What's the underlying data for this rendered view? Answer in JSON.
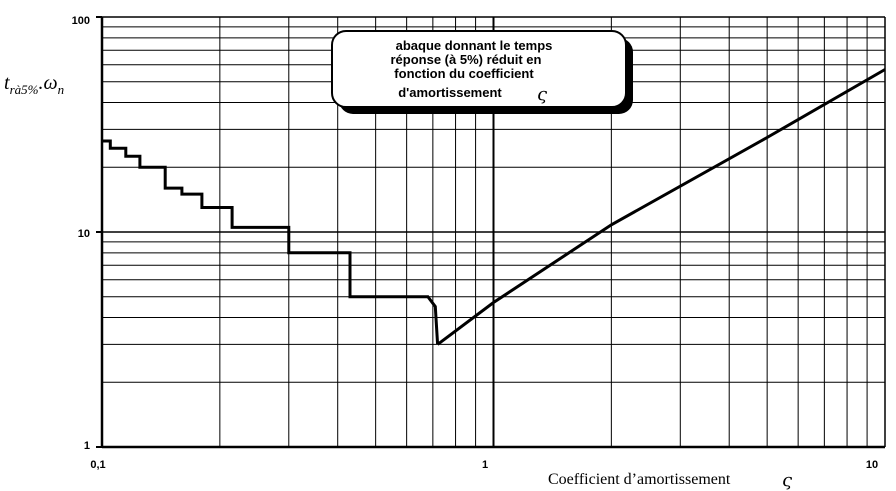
{
  "chart_data": {
    "type": "line",
    "xscale": "log",
    "yscale": "log",
    "xlim": [
      0.1,
      10
    ],
    "ylim": [
      1,
      100
    ],
    "grid": true,
    "x_ticks": [
      "0,1",
      "1",
      "10"
    ],
    "y_ticks": [
      "1",
      "10",
      "100"
    ],
    "ylabel": {
      "main": "t",
      "sub": "rà5%",
      "tail": ".ω",
      "tail_sub": "n"
    },
    "xlabel": {
      "text": "Coefficient d’amortissement",
      "symbol": "ς"
    },
    "annotation": {
      "lines": [
        "abaque donnant le temps",
        "réponse (à 5%) réduit en",
        "fonction du coefficient",
        "d'amortissement"
      ],
      "symbol": "ς"
    },
    "series": [
      {
        "values": [
          [
            0.1,
            26.5
          ],
          [
            0.105,
            26.5
          ],
          [
            0.105,
            24.5
          ],
          [
            0.115,
            24.5
          ],
          [
            0.115,
            22.5
          ],
          [
            0.125,
            22.5
          ],
          [
            0.125,
            20
          ],
          [
            0.145,
            20
          ],
          [
            0.145,
            16
          ],
          [
            0.16,
            16
          ],
          [
            0.16,
            15
          ],
          [
            0.18,
            15
          ],
          [
            0.18,
            13
          ],
          [
            0.215,
            13
          ],
          [
            0.215,
            10.5
          ],
          [
            0.3,
            10.5
          ],
          [
            0.3,
            8
          ],
          [
            0.43,
            8
          ],
          [
            0.43,
            5
          ],
          [
            0.68,
            5
          ],
          [
            0.71,
            4.5
          ],
          [
            0.72,
            3
          ]
        ]
      },
      {
        "values": [
          [
            0.72,
            3
          ],
          [
            1,
            4.7
          ],
          [
            2,
            10.8
          ],
          [
            5,
            27.5
          ],
          [
            10,
            57
          ]
        ]
      }
    ]
  }
}
